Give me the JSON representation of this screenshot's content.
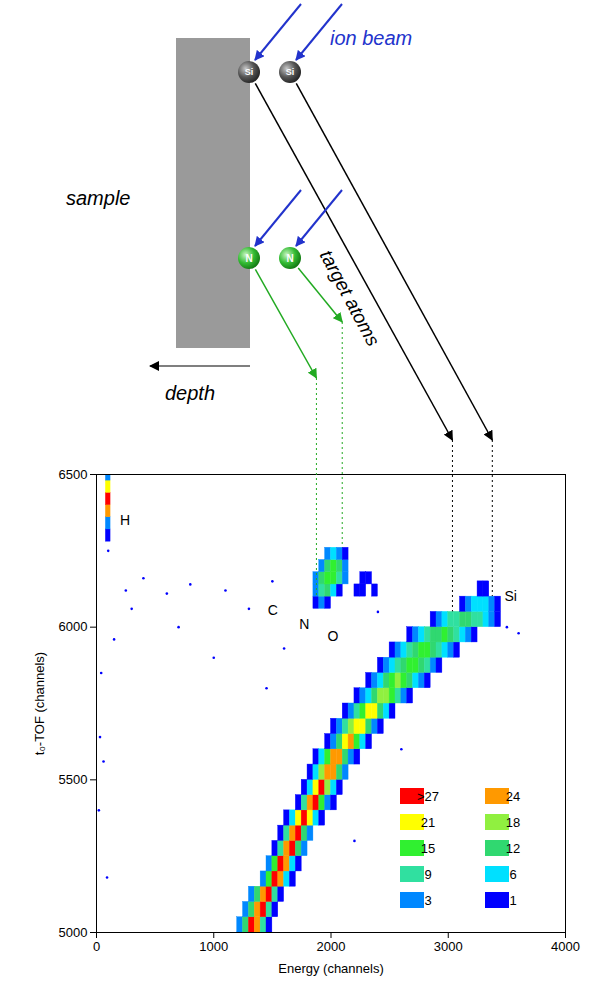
{
  "diagram": {
    "ion_beam": "ion beam",
    "sample": "sample",
    "depth": "depth",
    "target_atoms": "target atoms",
    "recoils": [
      {
        "atom": "Si",
        "energy": 3040,
        "tof": 6050
      },
      {
        "atom": "Si",
        "energy": 3380,
        "tof": 6100
      },
      {
        "atom": "N",
        "energy": 1880,
        "tof": 6100
      },
      {
        "atom": "N",
        "energy": 2100,
        "tof": 6260
      }
    ]
  },
  "chart_data": {
    "type": "heatmap",
    "xlabel": "Energy (channels)",
    "ylabel": "t₀-TOF (channels)",
    "xlim": [
      0,
      4000
    ],
    "xticks": [
      0,
      1000,
      2000,
      3000,
      4000
    ],
    "ylim": [
      5000,
      6500
    ],
    "yticks": [
      5000,
      5500,
      6000,
      6500
    ],
    "legend": "bottom-right",
    "colorbar": {
      "ticks": [
        1,
        3,
        6,
        9,
        12,
        15,
        18,
        21,
        24,
        {
          "value": 27,
          "label": ">27"
        }
      ],
      "colors": [
        "#0000ff",
        "#0088ff",
        "#00e0ff",
        "#30e0a0",
        "#30d870",
        "#30f030",
        "#90f040",
        "#ffff00",
        "#ff9900",
        "#ff0000"
      ]
    },
    "annotations": [
      {
        "text": "H",
        "x": 200,
        "y": 6350
      },
      {
        "text": "C",
        "x": 1460,
        "y": 6055
      },
      {
        "text": "N",
        "x": 1730,
        "y": 6010
      },
      {
        "text": "O",
        "x": 1970,
        "y": 5971
      },
      {
        "text": "Si",
        "x": 3480,
        "y": 6100
      }
    ],
    "cells": [
      {
        "bin_size": [
          50,
          50
        ],
        "rows": [
          [
            5000,
            1200,
            [
              3,
              12,
              28,
              24,
              9,
              1
            ]
          ],
          [
            5050,
            1250,
            [
              3,
              12,
              24,
              28,
              9,
              1
            ]
          ],
          [
            5100,
            1300,
            [
              3,
              12,
              24,
              28,
              9,
              1
            ]
          ],
          [
            5150,
            1400,
            [
              3,
              15,
              28,
              24,
              6,
              1
            ]
          ],
          [
            5200,
            1450,
            [
              3,
              15,
              28,
              24,
              6,
              1
            ]
          ],
          [
            5250,
            1500,
            [
              1,
              9,
              24,
              28,
              12,
              3
            ]
          ],
          [
            5300,
            1550,
            [
              1,
              9,
              24,
              28,
              12,
              3
            ]
          ],
          [
            5350,
            1600,
            [
              1,
              6,
              21,
              28,
              21,
              6,
              1
            ]
          ],
          [
            5400,
            1700,
            [
              1,
              9,
              24,
              28,
              15,
              3,
              1
            ]
          ],
          [
            5450,
            1750,
            [
              1,
              6,
              21,
              28,
              18,
              6,
              1
            ]
          ],
          [
            5500,
            1800,
            [
              1,
              6,
              18,
              24,
              24,
              12,
              3
            ]
          ],
          [
            5550,
            1850,
            [
              1,
              6,
              15,
              24,
              24,
              12,
              3,
              1
            ]
          ],
          [
            5600,
            1950,
            [
              1,
              3,
              12,
              21,
              24,
              15,
              6,
              1
            ]
          ],
          [
            5650,
            2000,
            [
              1,
              3,
              9,
              18,
              21,
              21,
              12,
              3,
              1
            ]
          ],
          [
            5700,
            2100,
            [
              1,
              3,
              9,
              15,
              21,
              21,
              12,
              6,
              1
            ]
          ],
          [
            5750,
            2200,
            [
              1,
              3,
              6,
              12,
              18,
              18,
              15,
              9,
              3,
              1
            ]
          ],
          [
            5800,
            2300,
            [
              1,
              3,
              6,
              12,
              15,
              18,
              15,
              12,
              6,
              3,
              1
            ]
          ],
          [
            5850,
            2400,
            [
              1,
              3,
              6,
              9,
              12,
              15,
              15,
              12,
              9,
              3,
              1
            ]
          ],
          [
            5900,
            2500,
            [
              1,
              3,
              6,
              9,
              12,
              15,
              15,
              12,
              9,
              6,
              3,
              1
            ]
          ],
          [
            5950,
            2650,
            [
              1,
              3,
              6,
              9,
              12,
              12,
              15,
              12,
              9,
              6,
              3,
              1
            ]
          ],
          [
            6000,
            2850,
            [
              1,
              3,
              6,
              9,
              9,
              12,
              12,
              9,
              9,
              6,
              3,
              1
            ]
          ],
          [
            6050,
            3100,
            [
              1,
              3,
              6,
              6,
              6,
              3,
              1
            ]
          ],
          [
            6100,
            3250,
            [
              1,
              1
            ]
          ]
        ]
      },
      {
        "bin_size": [
          50,
          40
        ],
        "rows": [
          [
            6060,
            1850,
            [
              1,
              3,
              1
            ]
          ],
          [
            6100,
            1850,
            [
              3,
              9,
              12,
              6,
              1
            ]
          ],
          [
            6140,
            1850,
            [
              3,
              12,
              15,
              15,
              9,
              3
            ]
          ],
          [
            6180,
            1900,
            [
              3,
              12,
              15,
              12,
              3
            ]
          ],
          [
            6220,
            1950,
            [
              3,
              6,
              3,
              1
            ]
          ],
          [
            6100,
            2200,
            [
              1,
              1,
              0,
              1
            ]
          ],
          [
            6140,
            2250,
            [
              1,
              1
            ]
          ]
        ]
      },
      {
        "bin_size": [
          40,
          40
        ],
        "rows": [
          [
            6280,
            80,
            [
              1
            ]
          ],
          [
            6320,
            80,
            [
              3
            ]
          ],
          [
            6360,
            80,
            [
              24
            ]
          ],
          [
            6400,
            80,
            [
              28
            ]
          ],
          [
            6440,
            80,
            [
              21
            ]
          ],
          [
            6480,
            80,
            [
              3
            ]
          ]
        ]
      }
    ],
    "points": [
      [
        30,
        5640,
        1
      ],
      [
        60,
        5560,
        1
      ],
      [
        20,
        5400,
        1
      ],
      [
        90,
        5180,
        1
      ],
      [
        40,
        5850,
        1
      ],
      [
        150,
        5960,
        1
      ],
      [
        300,
        6060,
        1
      ],
      [
        250,
        6120,
        1
      ],
      [
        400,
        6160,
        1
      ],
      [
        600,
        6110,
        1
      ],
      [
        800,
        6140,
        1
      ],
      [
        1100,
        6120,
        1
      ],
      [
        1300,
        6060,
        1
      ],
      [
        1500,
        6150,
        1
      ],
      [
        1600,
        5930,
        1
      ],
      [
        2400,
        6050,
        1
      ],
      [
        2600,
        5600,
        1
      ],
      [
        3500,
        6000,
        1
      ],
      [
        3600,
        5980,
        1
      ],
      [
        2200,
        5300,
        1
      ],
      [
        1450,
        5800,
        1
      ],
      [
        100,
        6250,
        1
      ],
      [
        1000,
        5900,
        1
      ],
      [
        700,
        6000,
        1
      ]
    ]
  }
}
